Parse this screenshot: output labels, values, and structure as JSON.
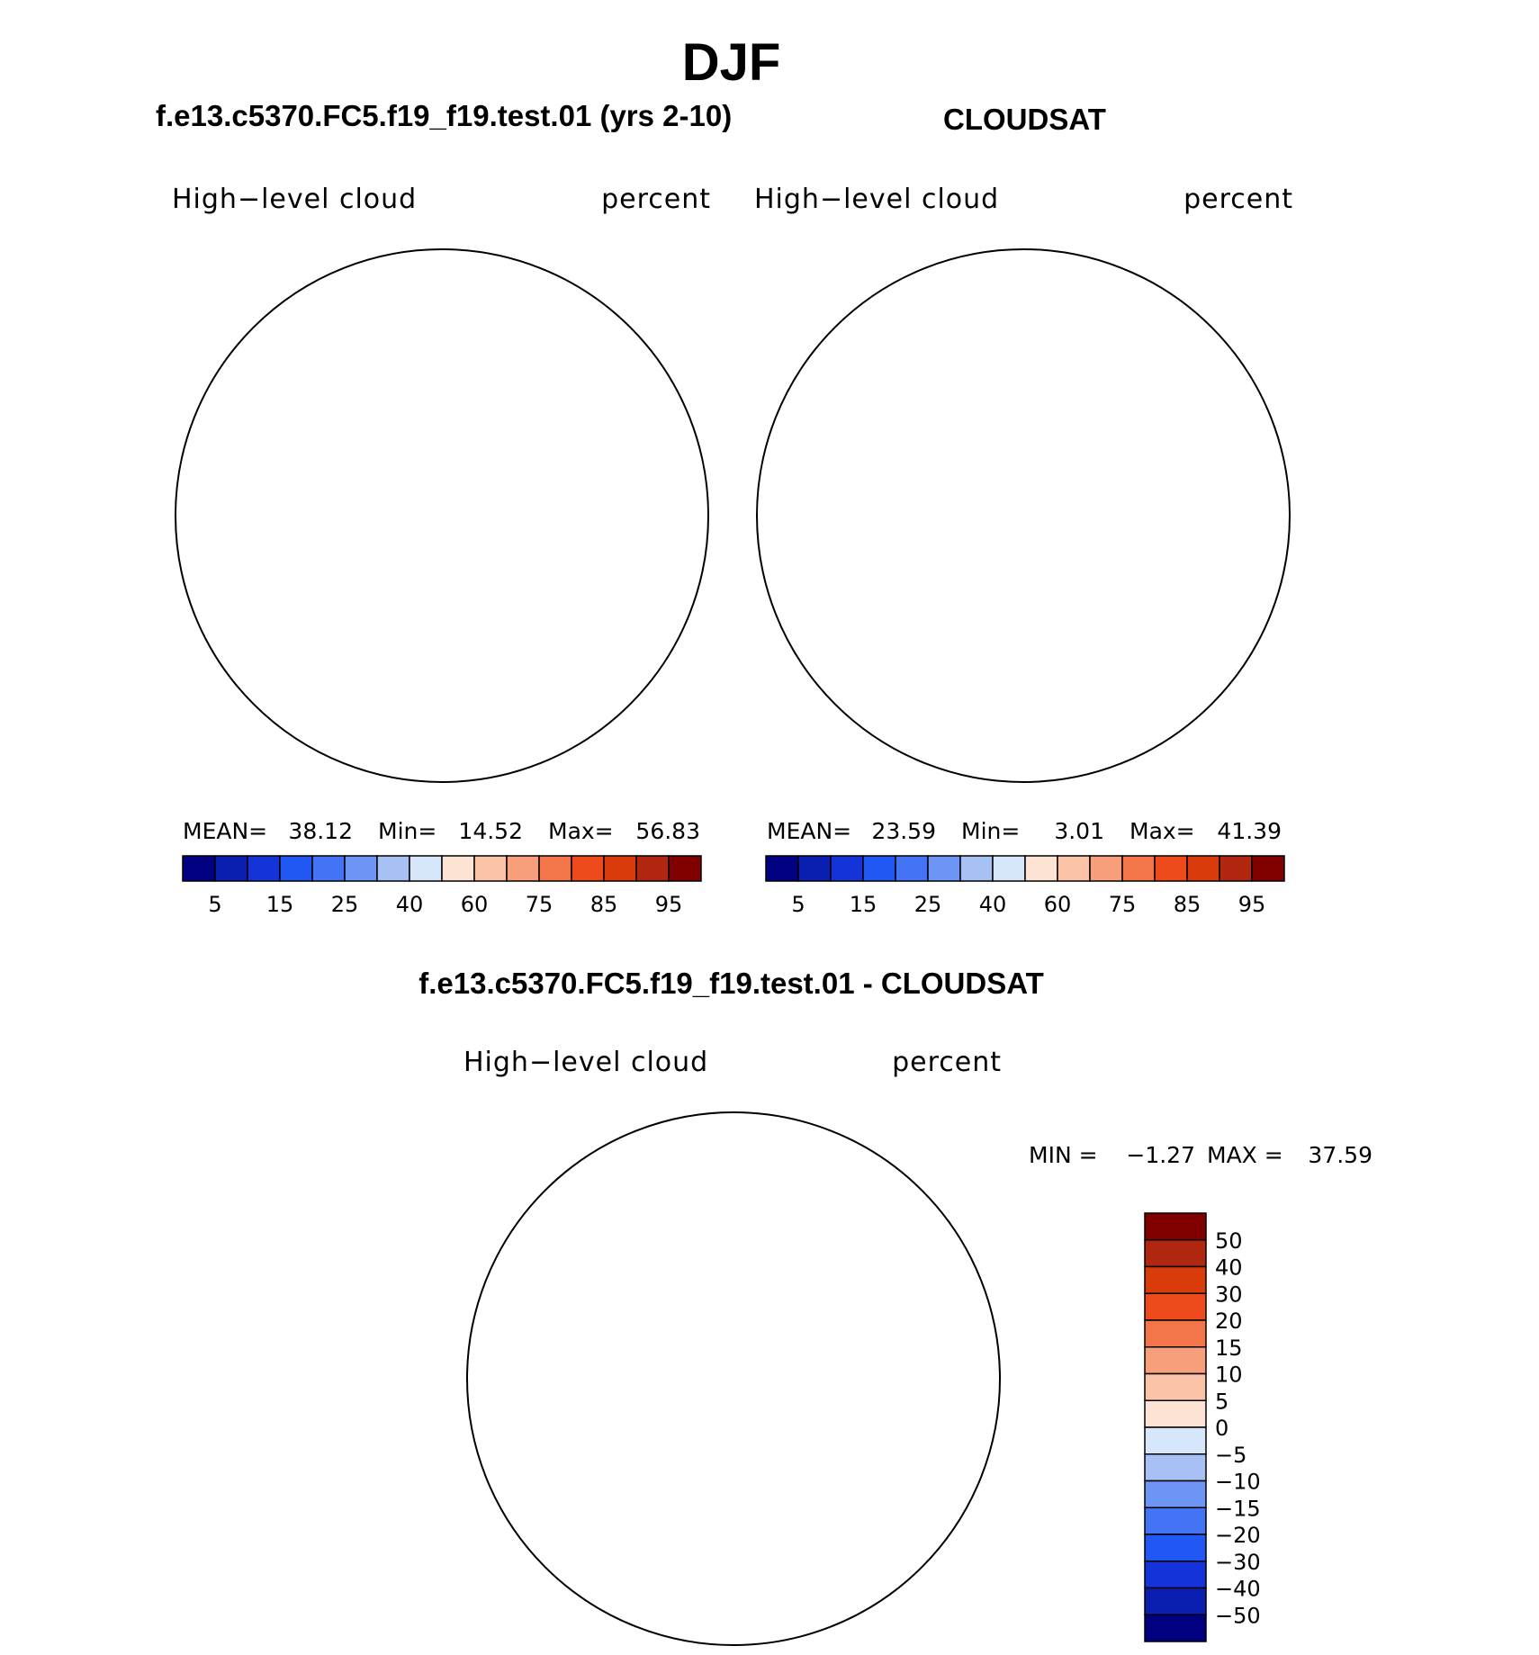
{
  "figure": {
    "season": "DJF",
    "panel1_title": "f.e13.c5370.FC5.f19_f19.test.01 (yrs 2-10)",
    "panel2_title": "CLOUDSAT",
    "diff_title": "f.e13.c5370.FC5.f19_f19.test.01 - CLOUDSAT"
  },
  "chart_data": [
    {
      "type": "heatmap",
      "projection": "south-polar-stereographic",
      "title": "f.e13.c5370.FC5.f19_f19.test.01 (yrs 2-10)",
      "left_label": "High−level cloud",
      "right_label": "percent",
      "stats": {
        "mean_label": "MEAN=",
        "mean": "38.12",
        "min_label": "Min=",
        "min": "14.52",
        "max_label": "Max=",
        "max": "56.83"
      },
      "levels": [
        5,
        10,
        15,
        20,
        25,
        30,
        40,
        50,
        60,
        70,
        75,
        80,
        85,
        90,
        95
      ],
      "tick_labels": [
        "5",
        "15",
        "25",
        "40",
        "60",
        "75",
        "85",
        "95"
      ],
      "colors": [
        "#000080",
        "#0a1fb0",
        "#1433d9",
        "#2157f2",
        "#4274f5",
        "#6c95f5",
        "#a7c1f5",
        "#d6e6fb",
        "#fde3d3",
        "#fbc3a8",
        "#f79f7a",
        "#f2764a",
        "#ef4a1c",
        "#d93c0a",
        "#b0260e",
        "#800000"
      ]
    },
    {
      "type": "heatmap",
      "projection": "south-polar-stereographic",
      "title": "CLOUDSAT",
      "left_label": "High−level cloud",
      "right_label": "percent",
      "stats": {
        "mean_label": "MEAN=",
        "mean": "23.59",
        "min_label": "Min=",
        "min": "3.01",
        "max_label": "Max=",
        "max": "41.39"
      },
      "levels": [
        5,
        10,
        15,
        20,
        25,
        30,
        40,
        50,
        60,
        70,
        75,
        80,
        85,
        90,
        95
      ],
      "tick_labels": [
        "5",
        "15",
        "25",
        "40",
        "60",
        "75",
        "85",
        "95"
      ],
      "colors": [
        "#000080",
        "#0a1fb0",
        "#1433d9",
        "#2157f2",
        "#4274f5",
        "#6c95f5",
        "#a7c1f5",
        "#d6e6fb",
        "#fde3d3",
        "#fbc3a8",
        "#f79f7a",
        "#f2764a",
        "#ef4a1c",
        "#d93c0a",
        "#b0260e",
        "#800000"
      ]
    },
    {
      "type": "heatmap",
      "projection": "south-polar-stereographic",
      "title": "f.e13.c5370.FC5.f19_f19.test.01 - CLOUDSAT",
      "left_label": "High−level cloud",
      "right_label": "percent",
      "stats": {
        "min_label": "MIN =",
        "min": "−1.27",
        "max_label": "MAX =",
        "max": "37.59"
      },
      "levels": [
        50,
        40,
        30,
        20,
        15,
        10,
        5,
        0,
        -5,
        -10,
        -15,
        -20,
        -30,
        -40,
        -50
      ],
      "tick_labels": [
        "50",
        "40",
        "30",
        "20",
        "15",
        "10",
        "5",
        "0",
        "−5",
        "−10",
        "−15",
        "−20",
        "−30",
        "−40",
        "−50"
      ],
      "colors_top_to_bottom": [
        "#800000",
        "#b0260e",
        "#d93c0a",
        "#ef4a1c",
        "#f2764a",
        "#f79f7a",
        "#fbc3a8",
        "#fde3d3",
        "#d6e6fb",
        "#a7c1f5",
        "#6c95f5",
        "#4274f5",
        "#2157f2",
        "#1433d9",
        "#0a1fb0",
        "#000080"
      ]
    }
  ]
}
